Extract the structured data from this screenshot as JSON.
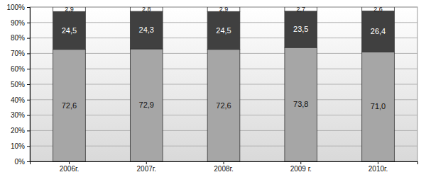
{
  "chart_data": {
    "type": "bar",
    "stacked": true,
    "data_labels": true,
    "grid": true,
    "categories": [
      "2006г.",
      "2007г.",
      "2008г.",
      "2009 г.",
      "2010г."
    ],
    "series": [
      {
        "color": "#a6a6a6",
        "values": [
          72.6,
          72.9,
          72.6,
          73.8,
          71.0
        ],
        "value_labels": [
          "72,6",
          "72,9",
          "72,6",
          "73,8",
          "71,0"
        ]
      },
      {
        "color": "#404040",
        "values": [
          24.5,
          24.3,
          24.5,
          23.5,
          26.4
        ],
        "value_labels": [
          "24,5",
          "24,3",
          "24,5",
          "23,5",
          "26,4"
        ]
      },
      {
        "color": "#ffffff",
        "values": [
          2.9,
          2.8,
          2.9,
          2.7,
          2.6
        ],
        "value_labels": [
          "2,9",
          "2,8",
          "2,9",
          "2,7",
          "2,6"
        ]
      }
    ],
    "ylim": [
      0,
      100
    ],
    "yticks": [
      {
        "value": 0,
        "label": "0%"
      },
      {
        "value": 10,
        "label": "10%"
      },
      {
        "value": 20,
        "label": "20%"
      },
      {
        "value": 30,
        "label": "30%"
      },
      {
        "value": 40,
        "label": "40%"
      },
      {
        "value": 50,
        "label": "50%"
      },
      {
        "value": 60,
        "label": "60%"
      },
      {
        "value": 70,
        "label": "70%"
      },
      {
        "value": 80,
        "label": "80%"
      },
      {
        "value": 90,
        "label": "90%"
      },
      {
        "value": 100,
        "label": "100%"
      }
    ]
  }
}
